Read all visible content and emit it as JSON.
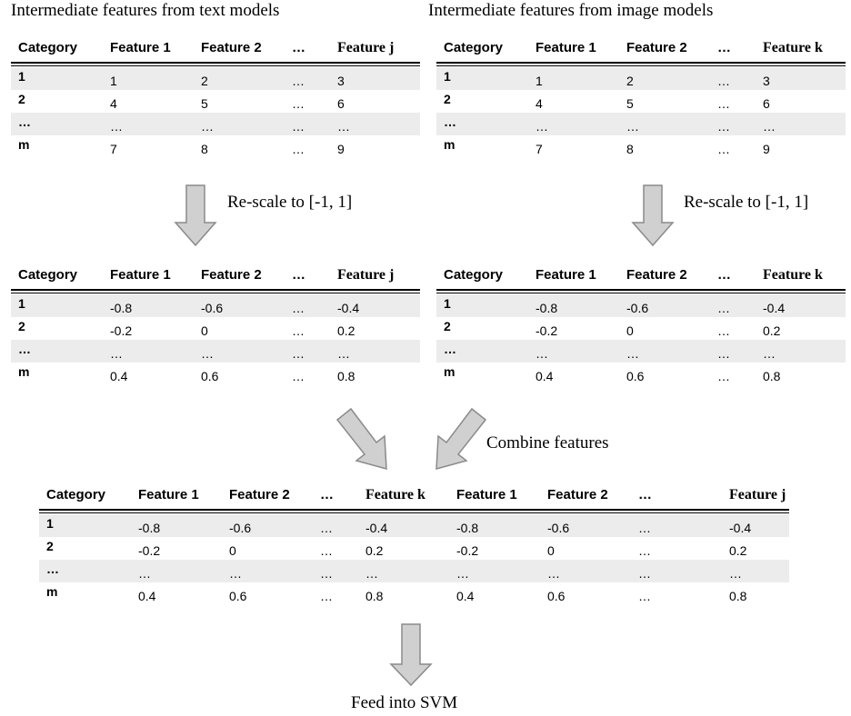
{
  "headings": {
    "text_models": "Intermediate features from text models",
    "image_models": "Intermediate features from image models"
  },
  "captions": {
    "rescale_left": "Re-scale to [-1, 1]",
    "rescale_right": "Re-scale to [-1, 1]",
    "combine": "Combine features",
    "feed": "Feed into SVM"
  },
  "tables": {
    "text_raw": {
      "headers": [
        "Category",
        "Feature 1",
        "Feature 2",
        "…",
        "Feature j"
      ],
      "rows": [
        [
          "1",
          "1",
          "2",
          "…",
          "3"
        ],
        [
          "2",
          "4",
          "5",
          "…",
          "6"
        ],
        [
          "…",
          "…",
          "…",
          "…",
          "…"
        ],
        [
          "m",
          "7",
          "8",
          "…",
          "9"
        ]
      ]
    },
    "image_raw": {
      "headers": [
        "Category",
        "Feature 1",
        "Feature 2",
        "…",
        "Feature k"
      ],
      "rows": [
        [
          "1",
          "1",
          "2",
          "…",
          "3"
        ],
        [
          "2",
          "4",
          "5",
          "…",
          "6"
        ],
        [
          "…",
          "…",
          "…",
          "…",
          "…"
        ],
        [
          "m",
          "7",
          "8",
          "…",
          "9"
        ]
      ]
    },
    "text_scaled": {
      "headers": [
        "Category",
        "Feature 1",
        "Feature 2",
        "…",
        "Feature j"
      ],
      "rows": [
        [
          "1",
          "-0.8",
          "-0.6",
          "…",
          "-0.4"
        ],
        [
          "2",
          "-0.2",
          "0",
          "…",
          "0.2"
        ],
        [
          "…",
          "…",
          "…",
          "…",
          "…"
        ],
        [
          "m",
          "0.4",
          "0.6",
          "…",
          "0.8"
        ]
      ]
    },
    "image_scaled": {
      "headers": [
        "Category",
        "Feature 1",
        "Feature 2",
        "…",
        "Feature k"
      ],
      "rows": [
        [
          "1",
          "-0.8",
          "-0.6",
          "…",
          "-0.4"
        ],
        [
          "2",
          "-0.2",
          "0",
          "…",
          "0.2"
        ],
        [
          "…",
          "…",
          "…",
          "…",
          "…"
        ],
        [
          "m",
          "0.4",
          "0.6",
          "…",
          "0.8"
        ]
      ]
    },
    "combined": {
      "headers": [
        "Category",
        "Feature 1",
        "Feature 2",
        "…",
        "Feature k",
        "Feature 1",
        "Feature 2",
        "…",
        "Feature j"
      ],
      "rows": [
        [
          "1",
          "-0.8",
          "-0.6",
          "…",
          "-0.4",
          "-0.8",
          "-0.6",
          "…",
          "-0.4"
        ],
        [
          "2",
          "-0.2",
          "0",
          "…",
          "0.2",
          "-0.2",
          "0",
          "…",
          "0.2"
        ],
        [
          "…",
          "…",
          "…",
          "…",
          "…",
          "…",
          "…",
          "…",
          "…"
        ],
        [
          "m",
          "0.4",
          "0.6",
          "…",
          "0.8",
          "0.4",
          "0.6",
          "…",
          "0.8"
        ]
      ]
    }
  },
  "colors": {
    "arrow_fill": "#d0d0d0",
    "arrow_stroke": "#8a8a8a",
    "row_shade": "#ececec"
  }
}
